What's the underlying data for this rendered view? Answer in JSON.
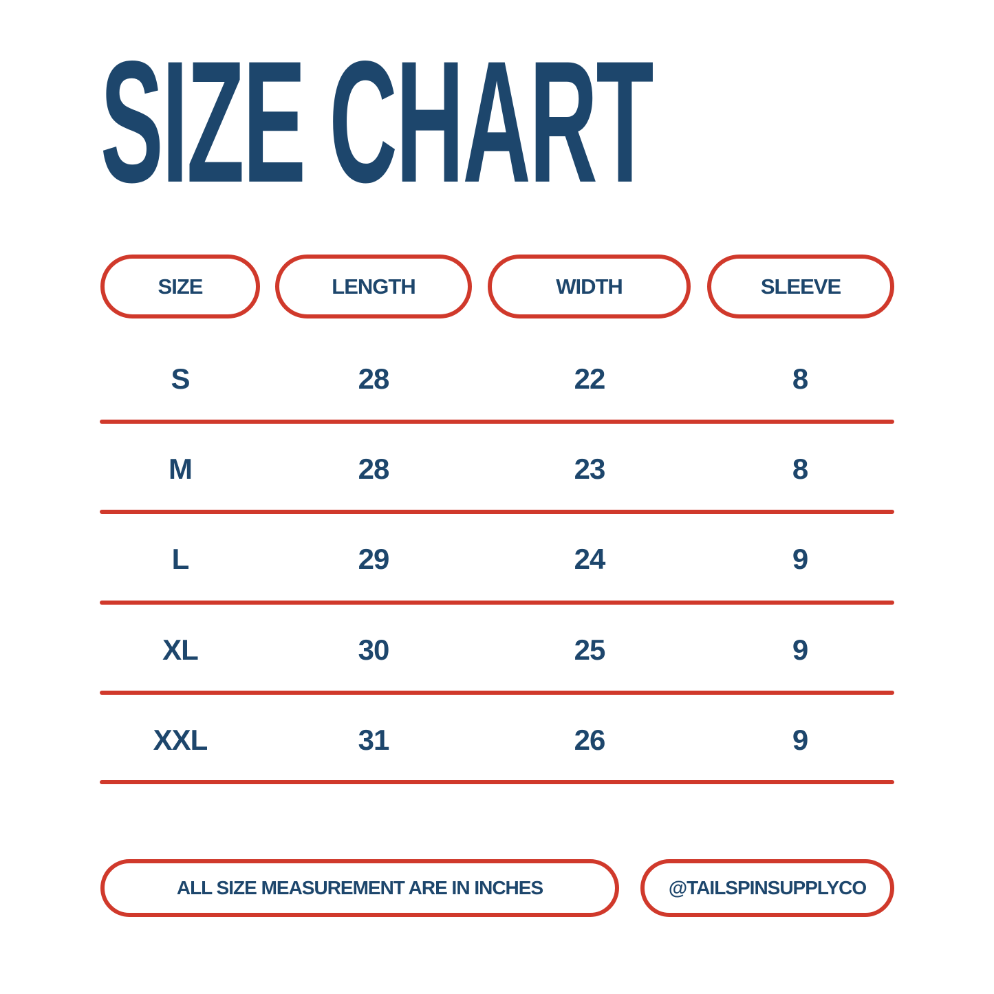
{
  "title": "SIZE CHART",
  "columns": [
    "SIZE",
    "LENGTH",
    "WIDTH",
    "SLEEVE"
  ],
  "rows": [
    [
      "S",
      "28",
      "22",
      "8"
    ],
    [
      "M",
      "28",
      "23",
      "8"
    ],
    [
      "L",
      "29",
      "24",
      "9"
    ],
    [
      "XL",
      "30",
      "25",
      "9"
    ],
    [
      "XXL",
      "31",
      "26",
      "9"
    ]
  ],
  "footer": {
    "note": "ALL SIZE MEASUREMENT ARE IN INCHES",
    "handle": "@TAILSPINSUPPLYCO"
  },
  "colors": {
    "navy": "#1d466c",
    "red": "#d0392b"
  }
}
